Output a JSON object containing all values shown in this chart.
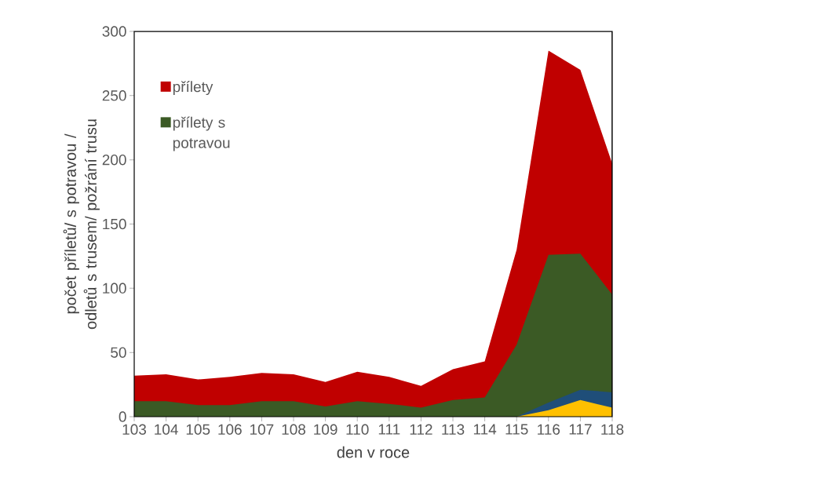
{
  "chart_data": {
    "type": "area",
    "xlabel": "den v roce",
    "ylabel": "počet příletů/ s potravou / odletů s trusem/ požrání trusu",
    "categories": [
      "103",
      "104",
      "105",
      "106",
      "107",
      "108",
      "109",
      "110",
      "111",
      "112",
      "113",
      "114",
      "115",
      "116",
      "117",
      "118"
    ],
    "series": [
      {
        "name": "přílety",
        "color": "#c00000",
        "values": [
          32,
          33,
          29,
          31,
          34,
          33,
          27,
          35,
          31,
          24,
          37,
          43,
          130,
          285,
          270,
          197
        ]
      },
      {
        "name": "přílety s potravou",
        "color": "#3b5a25",
        "values": [
          12,
          12,
          9,
          9,
          12,
          12,
          8,
          12,
          10,
          7,
          13,
          15,
          56,
          126,
          127,
          95
        ]
      },
      {
        "color": "#1f4e79",
        "values": [
          null,
          null,
          null,
          null,
          null,
          null,
          null,
          null,
          null,
          null,
          null,
          null,
          0,
          11,
          21,
          19
        ]
      },
      {
        "color": "#ffc000",
        "values": [
          null,
          null,
          null,
          null,
          null,
          null,
          null,
          null,
          null,
          null,
          null,
          null,
          0,
          5,
          13,
          7
        ]
      }
    ],
    "ylim": [
      0,
      300
    ],
    "yticks": [
      0,
      50,
      100,
      150,
      200,
      250,
      300
    ],
    "grid": false,
    "legend": "top left"
  }
}
